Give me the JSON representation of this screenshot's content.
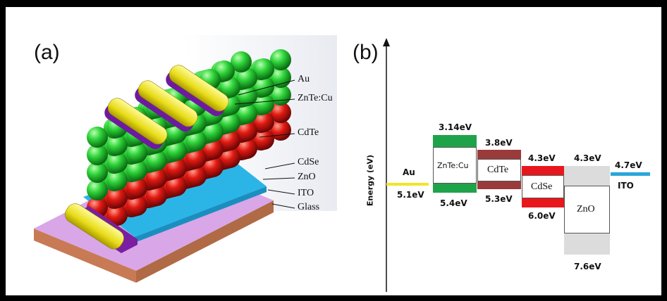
{
  "panel_a": {
    "label": "(a)",
    "layers": [
      "Au",
      "ZnTe:Cu",
      "CdTe",
      "CdSe",
      "ZnO",
      "ITO",
      "Glass"
    ]
  },
  "panel_b": {
    "label": "(b)",
    "y_axis_label": "Energy (eV)",
    "materials": {
      "au": "Au",
      "zntecu": "ZnTe:Cu",
      "cdte": "CdTe",
      "cdse": "CdSe",
      "zno": "ZnO",
      "ito": "ITO"
    },
    "energies": {
      "au": "5.1eV",
      "zntecu_top": "3.14eV",
      "zntecu_bottom": "5.4eV",
      "cdte_top": "3.8eV",
      "cdte_bottom": "5.3eV",
      "cdse_top": "4.3eV",
      "cdse_bottom": "6.0eV",
      "zno_top": "4.3eV",
      "zno_bottom": "7.6eV",
      "ito": "4.7eV"
    },
    "colors": {
      "au": "#f2e52a",
      "zntecu": "#1fa34a",
      "cdte": "#9b3a3a",
      "cdse": "#e8171d",
      "zno": "#dcdcdc",
      "ito": "#2aa6d9"
    }
  }
}
